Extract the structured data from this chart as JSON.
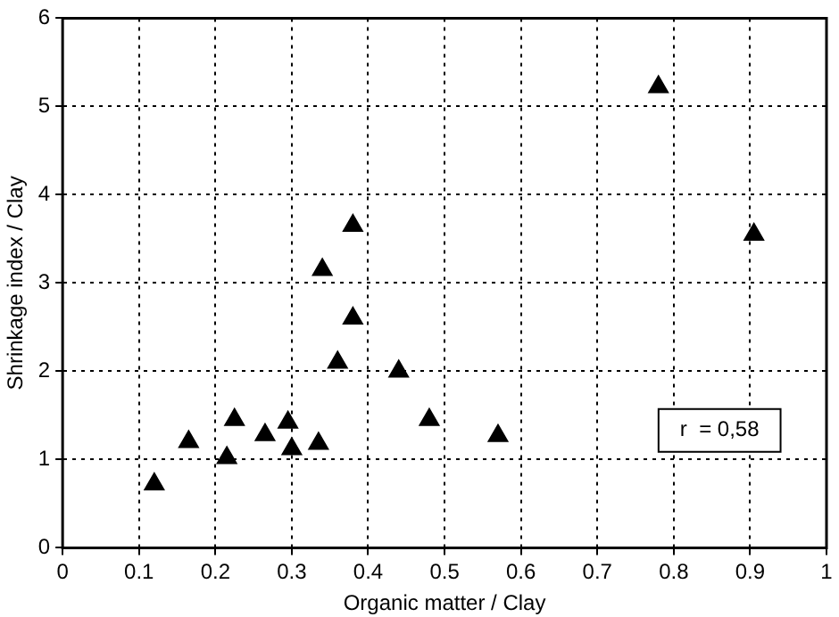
{
  "chart_data": {
    "type": "scatter",
    "xlabel": "Organic matter / Clay",
    "ylabel": "Shrinkage index / Clay",
    "x": [
      0.12,
      0.165,
      0.215,
      0.225,
      0.265,
      0.295,
      0.3,
      0.335,
      0.34,
      0.36,
      0.38,
      0.38,
      0.44,
      0.48,
      0.57,
      0.78,
      0.905
    ],
    "values": [
      0.72,
      1.2,
      1.02,
      1.45,
      1.28,
      1.42,
      1.12,
      1.18,
      3.15,
      2.1,
      3.65,
      2.6,
      2.0,
      1.45,
      1.27,
      5.22,
      3.55
    ],
    "color": "#000000",
    "marker": "triangle",
    "grid": true,
    "xlim": [
      0,
      1
    ],
    "xticks": [
      0,
      0.1,
      0.2,
      0.3,
      0.4,
      0.5,
      0.6,
      0.7,
      0.8,
      0.9,
      1
    ],
    "ylim": [
      0,
      6
    ],
    "yticks": [
      0,
      1,
      2,
      3,
      4,
      5,
      6
    ],
    "annotations": [
      "r  = 0,58"
    ]
  }
}
